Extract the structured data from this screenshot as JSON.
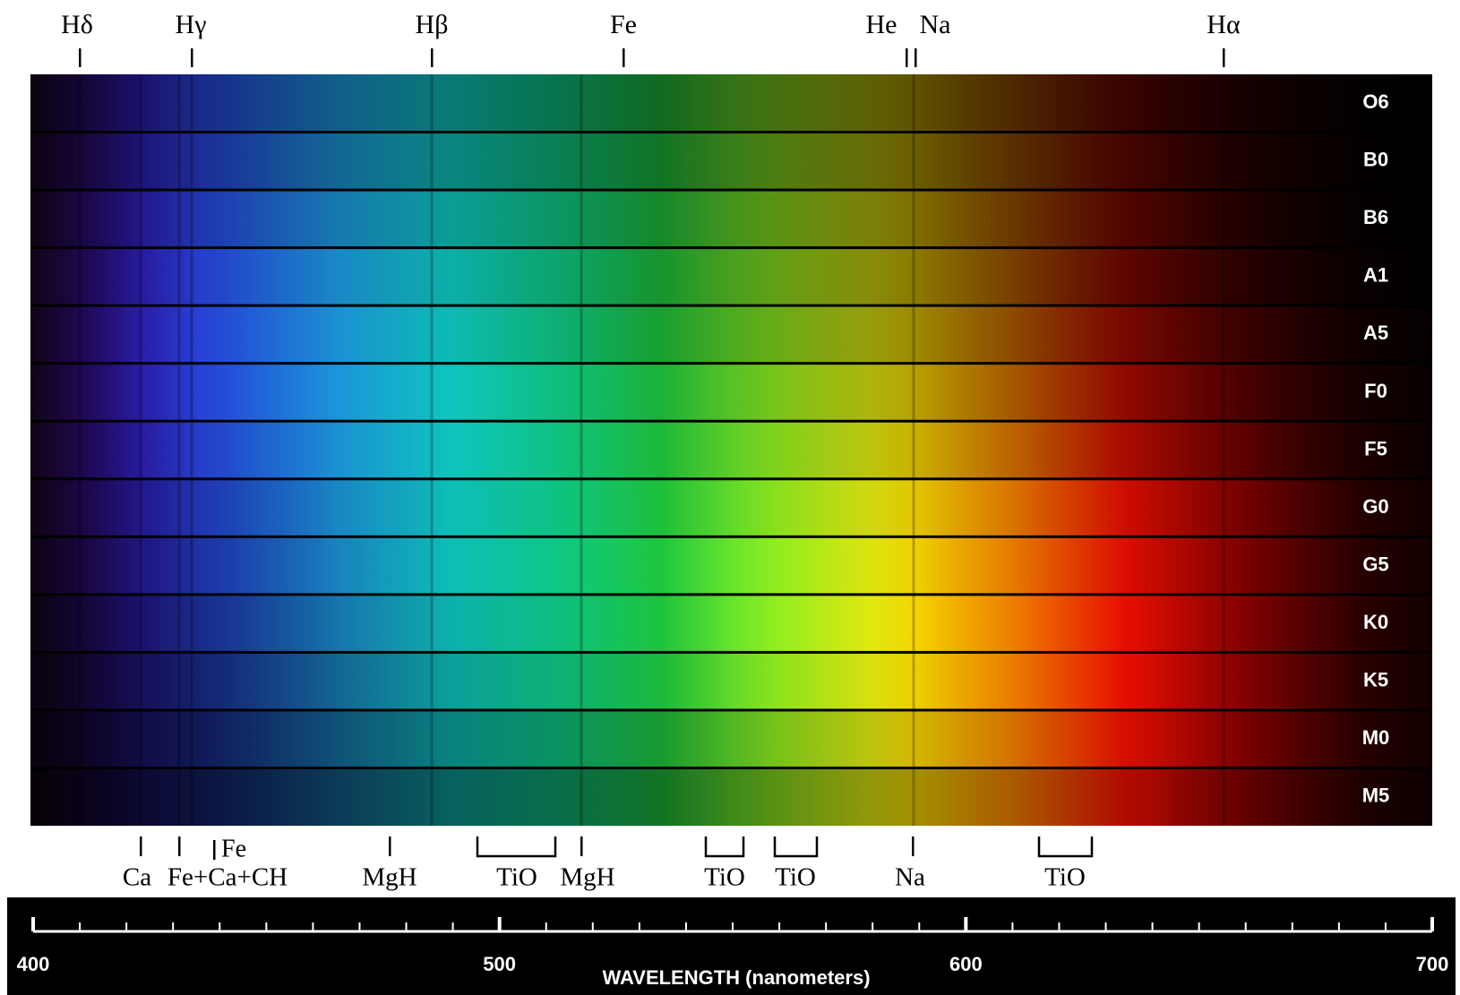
{
  "top_lines": [
    "Hδ",
    "Hγ",
    "Hβ",
    "Fe",
    "He",
    "Na",
    "Hα"
  ],
  "spectral_classes": [
    "O6",
    "B0",
    "B6",
    "A1",
    "A5",
    "F0",
    "F5",
    "G0",
    "G5",
    "K0",
    "K5",
    "M0",
    "M5"
  ],
  "bottom_features": [
    "Ca",
    "Fe+Ca+CH",
    "Fe",
    "MgH",
    "TiO",
    "MgH",
    "TiO",
    "TiO",
    "Na",
    "TiO"
  ],
  "axis": {
    "title": "WAVELENGTH (nanometers)",
    "lim": [
      400,
      700
    ],
    "ticks": [
      400,
      500,
      600,
      700
    ]
  }
}
